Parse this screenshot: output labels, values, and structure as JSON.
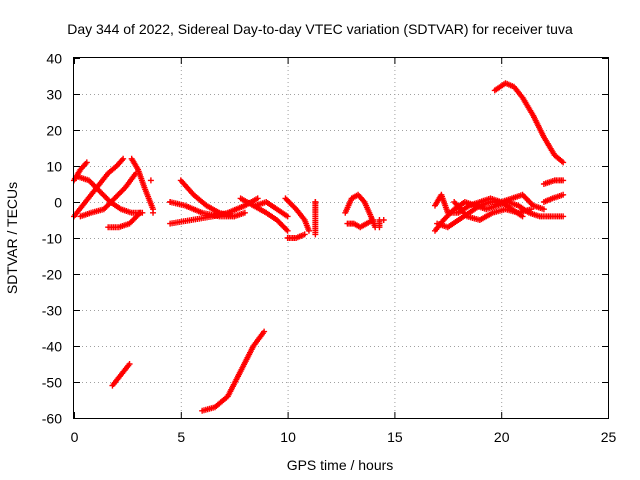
{
  "chart_data": {
    "type": "scatter",
    "title": "Day 344 of 2022, Sidereal Day-to-day VTEC variation (SDTVAR) for receiver tuva",
    "xlabel": "GPS time / hours",
    "ylabel": "SDTVAR / TECUs",
    "xlim": [
      0,
      25
    ],
    "ylim": [
      -60,
      40
    ],
    "xticks": [
      0,
      5,
      10,
      15,
      20,
      25
    ],
    "yticks": [
      40,
      30,
      20,
      10,
      0,
      -10,
      -20,
      -30,
      -40,
      -50,
      -60
    ],
    "grid": true,
    "marker": "+",
    "series_color": "#ff0000",
    "tracks": [
      {
        "name": "arc-1",
        "points": [
          [
            0.0,
            -4
          ],
          [
            0.4,
            -1
          ],
          [
            0.8,
            2
          ],
          [
            1.2,
            5
          ],
          [
            1.6,
            8
          ],
          [
            2.0,
            10
          ],
          [
            2.3,
            12
          ]
        ]
      },
      {
        "name": "arc-2",
        "points": [
          [
            0.0,
            6
          ],
          [
            0.3,
            9
          ],
          [
            0.6,
            11
          ]
        ]
      },
      {
        "name": "arc-3",
        "points": [
          [
            0.2,
            7
          ],
          [
            0.7,
            6
          ],
          [
            1.2,
            3
          ],
          [
            1.7,
            0
          ],
          [
            2.2,
            -2
          ],
          [
            2.7,
            -3
          ],
          [
            3.2,
            -3
          ]
        ]
      },
      {
        "name": "arc-4",
        "points": [
          [
            0.3,
            -4
          ],
          [
            0.8,
            -3
          ],
          [
            1.4,
            -2
          ],
          [
            1.9,
            1
          ],
          [
            2.4,
            4
          ],
          [
            2.9,
            8
          ]
        ]
      },
      {
        "name": "arc-5",
        "points": [
          [
            1.6,
            -7
          ],
          [
            2.1,
            -7
          ],
          [
            2.6,
            -6
          ],
          [
            3.1,
            -3
          ]
        ]
      },
      {
        "name": "arc-6",
        "points": [
          [
            2.7,
            12
          ],
          [
            3.0,
            9
          ],
          [
            3.3,
            4
          ],
          [
            3.5,
            1
          ],
          [
            3.7,
            -2
          ]
        ]
      },
      {
        "name": "arc-7",
        "points": [
          [
            1.8,
            -51
          ],
          [
            2.2,
            -48
          ],
          [
            2.6,
            -45
          ]
        ]
      },
      {
        "name": "arc-8",
        "points": [
          [
            4.5,
            -6
          ],
          [
            5.5,
            -5
          ],
          [
            6.5,
            -4
          ],
          [
            7.2,
            -3
          ],
          [
            8.0,
            -1
          ],
          [
            8.6,
            1
          ]
        ]
      },
      {
        "name": "arc-9",
        "points": [
          [
            5.0,
            6
          ],
          [
            5.6,
            2
          ],
          [
            6.2,
            -1
          ],
          [
            6.8,
            -3
          ],
          [
            7.5,
            -4
          ],
          [
            8.0,
            -3
          ]
        ]
      },
      {
        "name": "arc-10",
        "points": [
          [
            4.5,
            0
          ],
          [
            5.2,
            -1
          ],
          [
            6.0,
            -3
          ],
          [
            6.8,
            -4
          ],
          [
            7.5,
            -4
          ]
        ]
      },
      {
        "name": "arc-11",
        "points": [
          [
            7.8,
            1
          ],
          [
            8.4,
            -1
          ],
          [
            9.0,
            -3
          ],
          [
            9.5,
            -5
          ],
          [
            10.0,
            -8
          ]
        ]
      },
      {
        "name": "arc-12",
        "points": [
          [
            8.5,
            -1
          ],
          [
            9.0,
            0
          ],
          [
            9.5,
            -2
          ],
          [
            10.0,
            -4
          ]
        ]
      },
      {
        "name": "arc-13",
        "points": [
          [
            6.0,
            -58
          ],
          [
            6.6,
            -57
          ],
          [
            7.2,
            -54
          ],
          [
            7.8,
            -47
          ],
          [
            8.4,
            -40
          ],
          [
            8.9,
            -36
          ]
        ]
      },
      {
        "name": "arc-14",
        "points": [
          [
            9.9,
            1
          ],
          [
            10.4,
            -2
          ],
          [
            10.8,
            -5
          ],
          [
            11.0,
            -8
          ]
        ]
      },
      {
        "name": "arc-15",
        "points": [
          [
            10.0,
            -10
          ],
          [
            10.4,
            -10
          ],
          [
            10.8,
            -9
          ]
        ]
      },
      {
        "name": "arc-16",
        "points": [
          [
            11.3,
            0
          ],
          [
            11.3,
            -3
          ],
          [
            11.3,
            -9
          ]
        ]
      },
      {
        "name": "arc-17",
        "points": [
          [
            12.7,
            -3
          ],
          [
            13.0,
            1
          ],
          [
            13.3,
            2
          ],
          [
            13.6,
            0
          ],
          [
            13.9,
            -4
          ],
          [
            14.1,
            -7
          ]
        ]
      },
      {
        "name": "arc-18",
        "points": [
          [
            12.8,
            -6
          ],
          [
            13.1,
            -6
          ],
          [
            13.4,
            -7
          ],
          [
            13.7,
            -6
          ],
          [
            14.0,
            -5
          ]
        ]
      },
      {
        "name": "arc-19",
        "points": [
          [
            14.3,
            -5
          ],
          [
            14.3,
            -7
          ]
        ]
      },
      {
        "name": "arc-20",
        "points": [
          [
            16.9,
            -8
          ],
          [
            17.3,
            -5
          ],
          [
            17.8,
            -2
          ],
          [
            18.3,
            0
          ],
          [
            18.8,
            -1
          ],
          [
            19.3,
            -2
          ],
          [
            19.8,
            -1
          ],
          [
            20.3,
            0
          ],
          [
            20.8,
            -1
          ],
          [
            21.3,
            -3
          ],
          [
            21.8,
            -4
          ],
          [
            22.3,
            -4
          ],
          [
            22.9,
            -4
          ]
        ]
      },
      {
        "name": "arc-21",
        "points": [
          [
            17.0,
            -6
          ],
          [
            17.5,
            -7
          ],
          [
            18.0,
            -5
          ],
          [
            18.5,
            -3
          ],
          [
            19.0,
            -1
          ],
          [
            19.5,
            0
          ],
          [
            20.0,
            0
          ],
          [
            20.5,
            -2
          ],
          [
            21.0,
            -4
          ]
        ]
      },
      {
        "name": "arc-22",
        "points": [
          [
            16.9,
            -1
          ],
          [
            17.2,
            2
          ],
          [
            17.5,
            -3
          ],
          [
            18.0,
            -3
          ],
          [
            18.5,
            -1
          ],
          [
            19.0,
            0
          ],
          [
            19.5,
            1
          ],
          [
            20.0,
            0
          ],
          [
            20.5,
            1
          ],
          [
            21.0,
            2
          ],
          [
            21.5,
            -1
          ],
          [
            22.0,
            -2
          ]
        ]
      },
      {
        "name": "arc-23",
        "points": [
          [
            17.8,
            0
          ],
          [
            18.4,
            -4
          ],
          [
            19.0,
            -5
          ],
          [
            19.6,
            -3
          ],
          [
            20.2,
            -2
          ],
          [
            20.8,
            -3
          ],
          [
            21.4,
            -2
          ]
        ]
      },
      {
        "name": "arc-24",
        "points": [
          [
            22.0,
            5
          ],
          [
            22.5,
            6
          ],
          [
            22.9,
            6
          ]
        ]
      },
      {
        "name": "arc-25",
        "points": [
          [
            22.0,
            0
          ],
          [
            22.4,
            1
          ],
          [
            22.9,
            2
          ]
        ]
      },
      {
        "name": "arc-26",
        "points": [
          [
            19.7,
            31
          ],
          [
            20.2,
            33
          ],
          [
            20.6,
            32
          ],
          [
            21.0,
            29
          ],
          [
            21.5,
            24
          ],
          [
            22.0,
            18
          ],
          [
            22.5,
            13
          ],
          [
            22.9,
            11
          ]
        ]
      }
    ],
    "isolated_points": [
      [
        3.6,
        6
      ],
      [
        3.7,
        -3
      ],
      [
        4.5,
        0
      ],
      [
        11.3,
        0
      ],
      [
        14.5,
        -5
      ]
    ]
  }
}
